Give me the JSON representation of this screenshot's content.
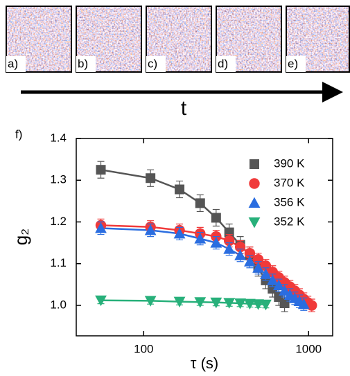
{
  "panels": [
    "a)",
    "b)",
    "c)",
    "d)",
    "e)"
  ],
  "arrow_label": "t",
  "chart_data": {
    "type": "scatter",
    "panel_label": "f)",
    "x_label": "τ (s)",
    "y_label": "g₂",
    "xscale": "log",
    "x": [
      55,
      110,
      165,
      220,
      275,
      330,
      385,
      440,
      495,
      550,
      605,
      660,
      715,
      770,
      825,
      880,
      935,
      990,
      1045
    ],
    "xlim": [
      39,
      1400
    ],
    "xticks": [
      100,
      1000
    ],
    "ylim": [
      0.927,
      1.4
    ],
    "yticks": [
      {
        "value": 1.0,
        "label": "1.0"
      },
      1.1,
      1.2,
      1.3,
      1.4
    ],
    "legend": "upper right",
    "series": [
      {
        "name": "390 K",
        "color": "#555555",
        "marker": "square",
        "error": 0.02,
        "values": [
          1.325,
          1.305,
          1.278,
          1.245,
          1.21,
          1.175,
          1.145,
          1.12,
          1.09,
          1.06,
          1.04,
          1.02,
          1.005,
          null,
          null,
          null,
          null,
          null,
          null
        ]
      },
      {
        "name": "370 K",
        "color": "#f03a3a",
        "marker": "circle",
        "error": 0.015,
        "values": [
          1.192,
          1.188,
          1.18,
          1.172,
          1.165,
          1.155,
          1.14,
          1.125,
          1.11,
          1.095,
          1.08,
          1.067,
          1.055,
          1.045,
          1.035,
          1.025,
          1.015,
          1.007,
          1.0
        ]
      },
      {
        "name": "356 K",
        "color": "#2a6de0",
        "marker": "triangle-up",
        "error": 0.015,
        "values": [
          1.185,
          1.18,
          1.172,
          1.16,
          1.15,
          1.135,
          1.12,
          1.105,
          1.09,
          1.075,
          1.06,
          1.048,
          1.035,
          1.025,
          1.017,
          1.01,
          1.003,
          null,
          null
        ]
      },
      {
        "name": "352 K",
        "color": "#27b07a",
        "marker": "triangle-down",
        "error": 0.008,
        "values": [
          1.012,
          1.011,
          1.009,
          1.008,
          1.007,
          1.006,
          1.005,
          1.004,
          1.003,
          1.002,
          null,
          null,
          null,
          null,
          null,
          null,
          null,
          null,
          null
        ]
      }
    ]
  }
}
